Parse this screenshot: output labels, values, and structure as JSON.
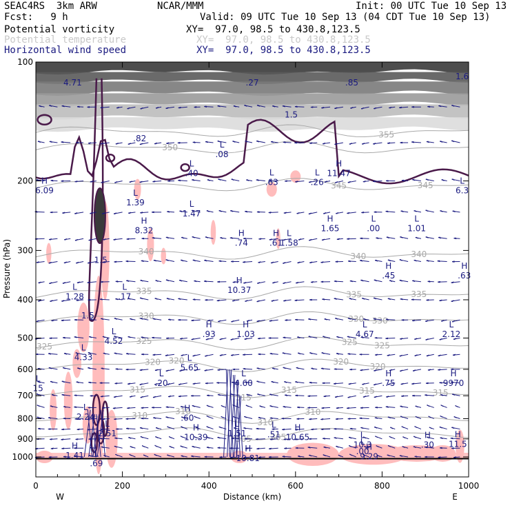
{
  "header": {
    "model": "SEAC4RS  3km ARW",
    "institution": "NCAR/MMM",
    "init": "Init: 00 UTC Tue 10 Sep 13",
    "fcst": "Fcst:   9 h",
    "valid": "Valid: 09 UTC Tue 10 Sep 13 (04 CDT Tue 10 Sep 13)",
    "fields": [
      {
        "name": "Potential vorticity",
        "xy": "XY=  97.0, 98.5 to 430.8,123.5",
        "color": "#000000"
      },
      {
        "name": "Potential temperature",
        "xy": "XY=  97.0, 98.5 to 430.8,123.5",
        "color": "#c8c8c8"
      },
      {
        "name": "Horizontal wind speed",
        "xy": "XY=  97.0, 98.5 to 430.8,123.5",
        "color": "#1a1a80"
      }
    ]
  },
  "chart_data": {
    "type": "heatmap",
    "title": "",
    "xlabel": "Distance (km)",
    "ylabel": "Pressure (hPa)",
    "xlim": [
      0,
      1000
    ],
    "ylim": [
      100,
      1025
    ],
    "y_log": true,
    "x_ticks": [
      0,
      200,
      400,
      600,
      800,
      1000
    ],
    "y_ticks": [
      100,
      200,
      300,
      400,
      500,
      600,
      700,
      800,
      900,
      1000
    ],
    "x_end_labels": {
      "left": "W",
      "right": "E"
    },
    "colors": {
      "pv_contour": "#4a1a4a",
      "pv_fill": "#ffbcbc",
      "theta": "#a8a8a8",
      "wind": "#1a1a80",
      "strato": "#505050"
    },
    "theta_contours": [
      {
        "value": 305,
        "p": 870,
        "labels": [
          {
            "x": 480,
            "t": "305"
          },
          {
            "x": 560,
            "t": "305"
          }
        ]
      },
      {
        "value": 310,
        "p": 790,
        "labels": [
          {
            "x": 240,
            "t": "310"
          },
          {
            "x": 340,
            "t": "310"
          },
          {
            "x": 530,
            "t": "310"
          },
          {
            "x": 640,
            "t": "310"
          }
        ]
      },
      {
        "value": 315,
        "p": 680,
        "labels": [
          {
            "x": 235,
            "t": "315"
          },
          {
            "x": 480,
            "t": "315"
          },
          {
            "x": 585,
            "t": "315"
          },
          {
            "x": 765,
            "t": "315"
          },
          {
            "x": 935,
            "t": "315"
          }
        ]
      },
      {
        "value": 320,
        "p": 585,
        "labels": [
          {
            "x": 270,
            "t": "320"
          },
          {
            "x": 325,
            "t": "320"
          },
          {
            "x": 705,
            "t": "320"
          },
          {
            "x": 790,
            "t": "320"
          }
        ]
      },
      {
        "value": 325,
        "p": 515,
        "labels": [
          {
            "x": 20,
            "t": "325"
          },
          {
            "x": 250,
            "t": "325"
          },
          {
            "x": 725,
            "t": "325"
          },
          {
            "x": 800,
            "t": "325"
          }
        ]
      },
      {
        "value": 330,
        "p": 445,
        "labels": [
          {
            "x": 255,
            "t": "330"
          },
          {
            "x": 740,
            "t": "330"
          },
          {
            "x": 795,
            "t": "330"
          }
        ]
      },
      {
        "value": 335,
        "p": 385,
        "labels": [
          {
            "x": 250,
            "t": "335"
          },
          {
            "x": 735,
            "t": "335"
          },
          {
            "x": 885,
            "t": "335"
          }
        ]
      },
      {
        "value": 340,
        "p": 305,
        "labels": [
          {
            "x": 255,
            "t": "340"
          },
          {
            "x": 745,
            "t": "340"
          },
          {
            "x": 885,
            "t": "340"
          }
        ]
      },
      {
        "value": 345,
        "p": 205,
        "labels": [
          {
            "x": 700,
            "t": "345"
          },
          {
            "x": 900,
            "t": "345"
          }
        ]
      },
      {
        "value": 350,
        "p": 165,
        "labels": [
          {
            "x": 310,
            "t": "350"
          }
        ]
      },
      {
        "value": 355,
        "p": 150,
        "labels": [
          {
            "x": 810,
            "t": "355"
          }
        ]
      }
    ],
    "wind_extrema": [
      {
        "x": 20,
        "p": 210,
        "type": "H",
        "v": "6.09"
      },
      {
        "x": 230,
        "p": 225,
        "type": "L",
        "v": "1.39"
      },
      {
        "x": 360,
        "p": 190,
        "type": "L",
        "v": ".40"
      },
      {
        "x": 430,
        "p": 170,
        "type": "L",
        "v": ".08"
      },
      {
        "x": 545,
        "p": 200,
        "type": "L",
        "v": ".63"
      },
      {
        "x": 650,
        "p": 200,
        "type": "L",
        "v": ".26"
      },
      {
        "x": 700,
        "p": 190,
        "type": "H",
        "v": "11.47"
      },
      {
        "x": 985,
        "p": 210,
        "type": "L",
        "v": "6.3"
      },
      {
        "x": 250,
        "p": 265,
        "type": "H",
        "v": "8.32"
      },
      {
        "x": 360,
        "p": 240,
        "type": "L",
        "v": "1.47"
      },
      {
        "x": 475,
        "p": 285,
        "type": "H",
        "v": ".74"
      },
      {
        "x": 555,
        "p": 285,
        "type": "H",
        "v": ".61"
      },
      {
        "x": 585,
        "p": 285,
        "type": "L",
        "v": "1.58"
      },
      {
        "x": 680,
        "p": 262,
        "type": "H",
        "v": "1.65"
      },
      {
        "x": 780,
        "p": 262,
        "type": "L",
        "v": ".00"
      },
      {
        "x": 880,
        "p": 262,
        "type": "L",
        "v": "1.01"
      },
      {
        "x": 815,
        "p": 345,
        "type": "H",
        "v": ".45"
      },
      {
        "x": 990,
        "p": 345,
        "type": "H",
        "v": ".63"
      },
      {
        "x": 205,
        "p": 390,
        "type": "L",
        "v": ".17"
      },
      {
        "x": 470,
        "p": 375,
        "type": "H",
        "v": "10.37"
      },
      {
        "x": 90,
        "p": 390,
        "type": "L",
        "v": "1.28"
      },
      {
        "x": 400,
        "p": 485,
        "type": "H",
        "v": ".93"
      },
      {
        "x": 485,
        "p": 485,
        "type": "H",
        "v": "1.03"
      },
      {
        "x": 180,
        "p": 505,
        "type": "L",
        "v": "4.52"
      },
      {
        "x": 760,
        "p": 485,
        "type": "L",
        "v": "4.67"
      },
      {
        "x": 960,
        "p": 485,
        "type": "L",
        "v": "2.12"
      },
      {
        "x": 110,
        "p": 555,
        "type": "L",
        "v": "4.33"
      },
      {
        "x": 355,
        "p": 590,
        "type": "L",
        "v": "5.65"
      },
      {
        "x": 5,
        "p": 665,
        "type": "L",
        "v": "15"
      },
      {
        "x": 290,
        "p": 645,
        "type": "L",
        "v": ".20"
      },
      {
        "x": 480,
        "p": 645,
        "type": "L",
        "v": "4.60"
      },
      {
        "x": 815,
        "p": 645,
        "type": "H",
        "v": ".75"
      },
      {
        "x": 965,
        "p": 645,
        "type": "H",
        "v": "9970"
      },
      {
        "x": 115,
        "p": 785,
        "type": "L",
        "v": "2.24"
      },
      {
        "x": 350,
        "p": 790,
        "type": "H",
        "v": ".60"
      },
      {
        "x": 165,
        "p": 865,
        "type": "L",
        "v": "2.51"
      },
      {
        "x": 370,
        "p": 885,
        "type": "H",
        "v": "10.39"
      },
      {
        "x": 465,
        "p": 865,
        "type": "L",
        "v": "1.51"
      },
      {
        "x": 550,
        "p": 870,
        "type": "L",
        "v": ".51"
      },
      {
        "x": 605,
        "p": 885,
        "type": "H",
        "v": "10.65"
      },
      {
        "x": 755,
        "p": 925,
        "type": "L",
        "v": "10.3"
      },
      {
        "x": 755,
        "p": 960,
        "type": "L",
        "v": ".00"
      },
      {
        "x": 905,
        "p": 925,
        "type": "H",
        "v": ".30"
      },
      {
        "x": 975,
        "p": 920,
        "type": "H",
        "v": "11.5"
      },
      {
        "x": 90,
        "p": 985,
        "type": "H",
        "v": "1.41"
      },
      {
        "x": 140,
        "p": 1030,
        "type": "L",
        "v": ".69"
      },
      {
        "x": 490,
        "p": 1000,
        "type": "H",
        "v": "10.81"
      },
      {
        "x": 770,
        "p": 990,
        "type": "H",
        "v": "9.29"
      },
      {
        "x": 85,
        "p": 112,
        "type": "",
        "v": "4.71"
      },
      {
        "x": 500,
        "p": 112,
        "type": "",
        "v": ".27"
      },
      {
        "x": 730,
        "p": 112,
        "type": "",
        "v": ".85"
      },
      {
        "x": 985,
        "p": 108,
        "type": "",
        "v": "1.6"
      },
      {
        "x": 240,
        "p": 155,
        "type": "",
        "v": ".82"
      },
      {
        "x": 590,
        "p": 135,
        "type": "",
        "v": "1.5"
      },
      {
        "x": 150,
        "p": 315,
        "type": "",
        "v": "1.5"
      },
      {
        "x": 120,
        "p": 435,
        "type": "",
        "v": "1.5"
      }
    ]
  }
}
